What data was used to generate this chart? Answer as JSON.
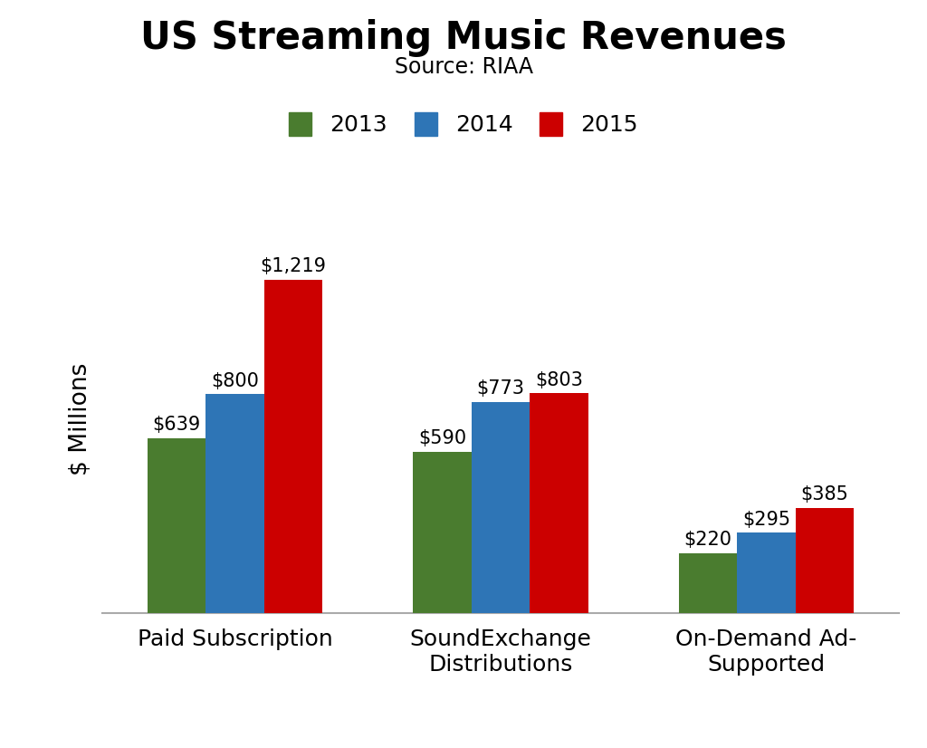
{
  "title": "US Streaming Music Revenues",
  "subtitle": "Source: RIAA",
  "ylabel": "$ Millions",
  "categories": [
    "Paid Subscription",
    "SoundExchange\nDistributions",
    "On-Demand Ad-\nSupported"
  ],
  "years": [
    "2013",
    "2014",
    "2015"
  ],
  "values": [
    [
      639,
      800,
      1219
    ],
    [
      590,
      773,
      803
    ],
    [
      220,
      295,
      385
    ]
  ],
  "labels": [
    [
      "$639",
      "$800",
      "$1,219"
    ],
    [
      "$590",
      "$773",
      "$803"
    ],
    [
      "$220",
      "$295",
      "$385"
    ]
  ],
  "colors": [
    "#4a7c2f",
    "#2e75b6",
    "#cc0000"
  ],
  "bar_width": 0.22,
  "ylim": [
    0,
    1420
  ],
  "background_color": "#ffffff",
  "title_fontsize": 30,
  "subtitle_fontsize": 17,
  "legend_fontsize": 18,
  "label_fontsize": 15,
  "tick_fontsize": 18,
  "ylabel_fontsize": 19
}
